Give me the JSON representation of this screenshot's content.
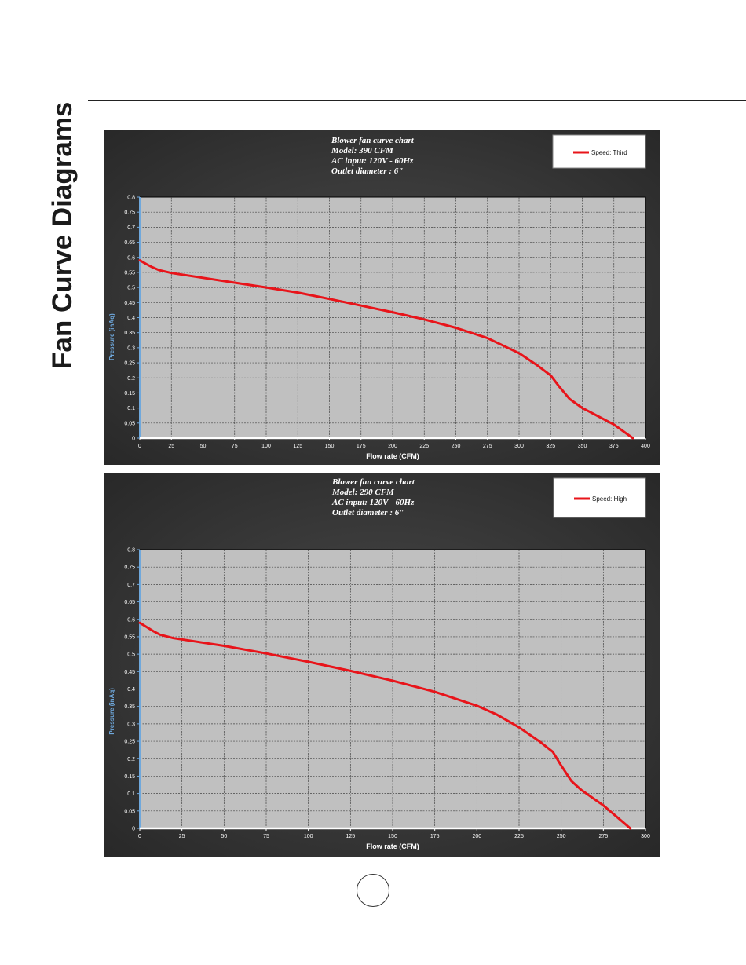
{
  "page": {
    "side_title": "Fan Curve Diagrams",
    "page_number": ""
  },
  "chart_data": [
    {
      "type": "line",
      "title_lines": [
        "Blower fan curve chart",
        " Model: 390 CFM",
        "AC input: 120V - 60Hz",
        "Outlet diameter : 6\""
      ],
      "xlabel": "Flow rate (CFM)",
      "ylabel": "Pressure (inAq)",
      "xlim": [
        0,
        400
      ],
      "ylim": [
        0,
        0.8
      ],
      "x_ticks": [
        0,
        25,
        50,
        75,
        100,
        125,
        150,
        175,
        200,
        225,
        250,
        275,
        300,
        325,
        350,
        375,
        400
      ],
      "y_ticks": [
        0,
        0.05,
        0.1,
        0.15,
        0.2,
        0.25,
        0.3,
        0.35,
        0.4,
        0.45,
        0.5,
        0.55,
        0.6,
        0.65,
        0.7,
        0.75,
        0.8
      ],
      "grid": true,
      "legend_position": "top-right",
      "series": [
        {
          "name": "Speed: Third",
          "color": "#e8141a",
          "x": [
            0,
            5,
            10,
            15,
            25,
            50,
            75,
            100,
            125,
            150,
            175,
            200,
            225,
            250,
            275,
            300,
            315,
            325,
            332,
            340,
            350,
            375,
            390
          ],
          "y": [
            0.59,
            0.578,
            0.567,
            0.558,
            0.548,
            0.532,
            0.516,
            0.5,
            0.483,
            0.462,
            0.44,
            0.418,
            0.394,
            0.366,
            0.332,
            0.282,
            0.24,
            0.208,
            0.17,
            0.13,
            0.1,
            0.045,
            0.0
          ]
        }
      ]
    },
    {
      "type": "line",
      "title_lines": [
        "Blower fan curve chart",
        " Model: 290 CFM",
        " AC input: 120V - 60Hz",
        " Outlet diameter : 6\""
      ],
      "xlabel": "Flow rate (CFM)",
      "ylabel": "Pressure (inAq)",
      "xlim": [
        0,
        300
      ],
      "ylim": [
        0,
        0.8
      ],
      "x_ticks": [
        0,
        25,
        50,
        75,
        100,
        125,
        150,
        175,
        200,
        225,
        250,
        275,
        300
      ],
      "y_ticks": [
        0,
        0.05,
        0.1,
        0.15,
        0.2,
        0.25,
        0.3,
        0.35,
        0.4,
        0.45,
        0.5,
        0.55,
        0.6,
        0.65,
        0.7,
        0.75,
        0.8
      ],
      "grid": true,
      "legend_position": "top-right",
      "series": [
        {
          "name": "Speed: High",
          "color": "#e8141a",
          "x": [
            0,
            4,
            8,
            12,
            20,
            50,
            75,
            100,
            125,
            150,
            175,
            200,
            212,
            225,
            237,
            245,
            250,
            256,
            262,
            275,
            291
          ],
          "y": [
            0.59,
            0.578,
            0.566,
            0.556,
            0.546,
            0.524,
            0.502,
            0.478,
            0.452,
            0.424,
            0.392,
            0.352,
            0.326,
            0.29,
            0.25,
            0.22,
            0.18,
            0.136,
            0.11,
            0.066,
            0.0
          ]
        }
      ]
    }
  ]
}
